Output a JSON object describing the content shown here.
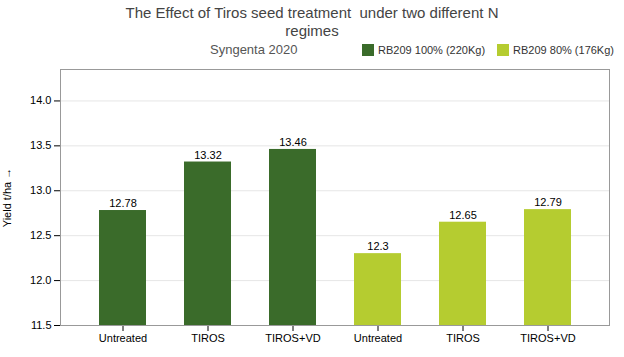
{
  "chart_data": {
    "type": "bar",
    "title": "The Effect of Tiros seed treatment  under two different N\nregimes",
    "subtitle": "Syngenta 2020",
    "y_label": "Yield t/ha",
    "categories": [
      "Untreated",
      "TIROS",
      "TIROS+VD",
      "Untreated",
      "TIROS",
      "TIROS+VD"
    ],
    "series": [
      {
        "name": "RB209 100% (220Kg)",
        "color": "#3a6b2a",
        "values": [
          12.78,
          13.32,
          13.46,
          null,
          null,
          null
        ]
      },
      {
        "name": "RB209 80% (176Kg)",
        "color": "#b5cc30",
        "values": [
          null,
          null,
          null,
          12.3,
          12.65,
          12.79
        ]
      }
    ],
    "ylim": [
      11.5,
      14.35
    ],
    "yticks": [
      11.5,
      {
        "value": 12.0,
        "label": "12.0"
      },
      12.5,
      {
        "value": 13.0,
        "label": "13.0"
      },
      13.5,
      {
        "value": 14.0,
        "label": "14.0"
      }
    ],
    "grid": true,
    "legend": "upper right",
    "data_labels": true
  }
}
